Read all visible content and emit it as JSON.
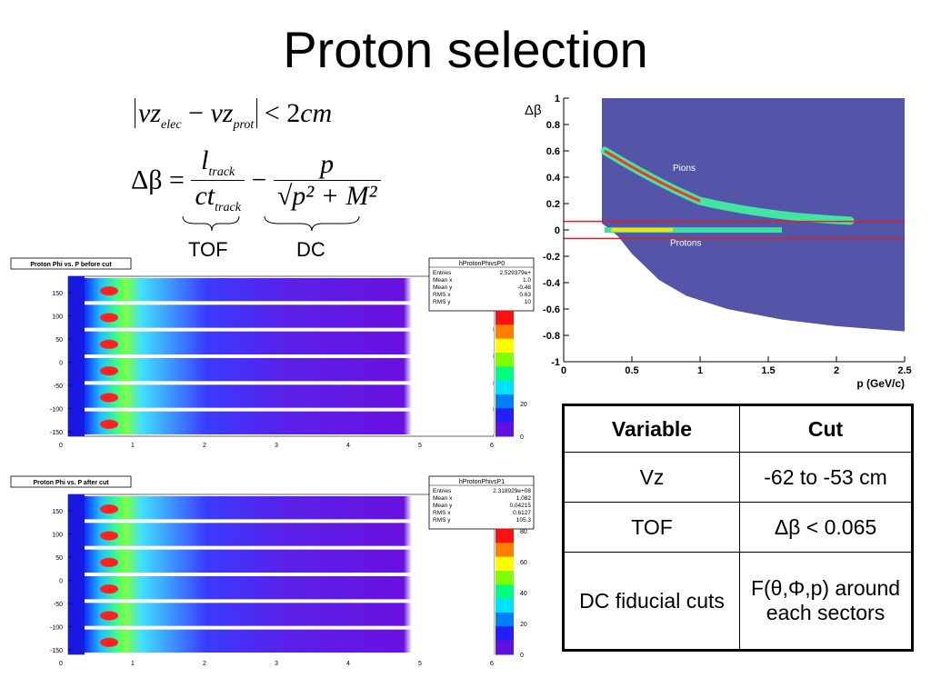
{
  "title": "Proton selection",
  "formulas": {
    "vz_text": "|vz_elec − vz_prot| < 2cm",
    "beta_lhs": "Δβ =",
    "beta_num1": "l",
    "beta_num1_sub": "track",
    "beta_den1": "ct",
    "beta_den1_sub": "track",
    "beta_minus": "−",
    "beta_num2": "p",
    "beta_den2": "p² + M²",
    "tof_label": "TOF",
    "dc_label": "DC"
  },
  "hist_before": {
    "title": "Proton Phi vs. P before cut",
    "stats_name": "hProtonPhivsP0",
    "stats": [
      [
        "Entries",
        "2.529379e+"
      ],
      [
        "Mean x",
        "1.0"
      ],
      [
        "Mean y",
        "-0.48"
      ],
      [
        "RMS x",
        "0.63"
      ],
      [
        "RMS y",
        "10"
      ]
    ],
    "y_ticks": [
      "150",
      "100",
      "50",
      "0",
      "-50",
      "-100",
      "-150"
    ],
    "x_ticks": [
      "0",
      "1",
      "2",
      "3",
      "4",
      "5",
      "6"
    ],
    "z_ticks": [
      "20",
      "0"
    ]
  },
  "hist_after": {
    "title": "Proton Phi vs. P after cut",
    "stats_name": "hProtonPhivsP1",
    "stats": [
      [
        "Entries",
        "2.318929e+08"
      ],
      [
        "Mean x",
        "1.082"
      ],
      [
        "Mean y",
        "0.04215"
      ],
      [
        "RMS x",
        "0.6127"
      ],
      [
        "RMS y",
        "105.3"
      ]
    ],
    "y_ticks": [
      "150",
      "100",
      "50",
      "0",
      "-50",
      "-100",
      "-150"
    ],
    "x_ticks": [
      "0",
      "1",
      "2",
      "3",
      "4",
      "5",
      "6"
    ],
    "z_ticks": [
      "80",
      "60",
      "40",
      "20",
      "0"
    ]
  },
  "beta_plot": {
    "ylabel": "Δβ",
    "xlabel": "p (GeV/c)",
    "y_ticks": [
      "1",
      "0.8",
      "0.6",
      "0.4",
      "0.2",
      "0",
      "-0.2",
      "-0.4",
      "-0.6",
      "-0.8",
      "-1"
    ],
    "x_ticks": [
      "0",
      "0.5",
      "1",
      "1.5",
      "2",
      "2.5"
    ],
    "pions_label": "Pions",
    "protons_label": "Protons",
    "cut_lines": [
      0.065,
      -0.065
    ]
  },
  "table": {
    "header": [
      "Variable",
      "Cut"
    ],
    "rows": [
      [
        "Vz",
        "-62 to -53 cm"
      ],
      [
        "TOF",
        "Δβ < 0.065"
      ],
      [
        "DC fiducial cuts",
        "F(θ,Φ,p) around each sectors"
      ]
    ]
  },
  "colors": {
    "plot_fill": "#5454a8",
    "cut_line": "#e02020",
    "hist_bg": "#3a2ae8"
  }
}
